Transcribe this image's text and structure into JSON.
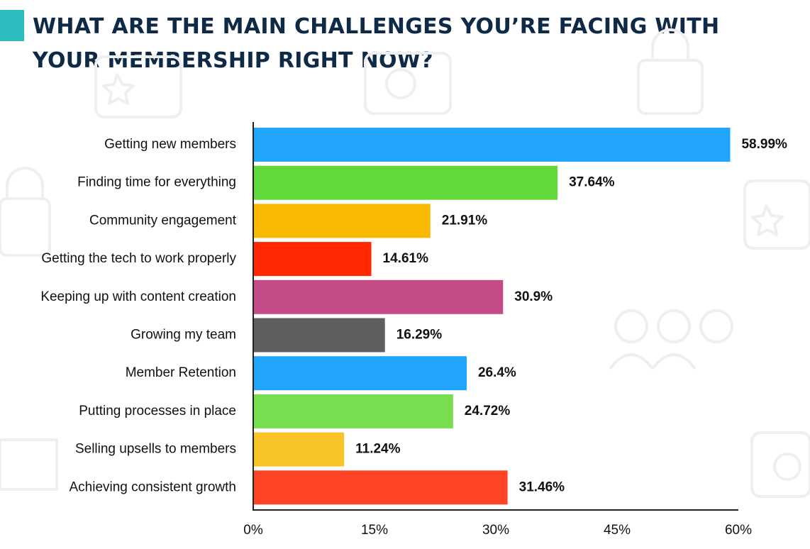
{
  "title": "WHAT ARE THE MAIN CHALLENGES YOU’RE FACING WITH YOUR MEMBERSHIP RIGHT NOW?",
  "colors": {
    "accent": "#2bbdbd",
    "title": "#0e2a47",
    "axis": "#222222"
  },
  "chart_data": {
    "type": "bar",
    "orientation": "horizontal",
    "categories": [
      "Getting new members",
      "Finding time for everything",
      "Community engagement",
      "Getting the tech to work properly",
      "Keeping up with content creation",
      "Growing my team",
      "Member Retention",
      "Putting processes in place",
      "Selling upsells to members",
      "Achieving consistent growth"
    ],
    "values": [
      58.99,
      37.64,
      21.91,
      14.61,
      30.9,
      16.29,
      26.4,
      24.72,
      11.24,
      31.46
    ],
    "value_labels": [
      "58.99%",
      "37.64%",
      "21.91%",
      "14.61%",
      "30.9%",
      "16.29%",
      "26.4%",
      "24.72%",
      "11.24%",
      "31.46%"
    ],
    "bar_colors": [
      "#21a4fc",
      "#62d93a",
      "#f8b900",
      "#ff2800",
      "#c44b86",
      "#5f5f5f",
      "#21a4fc",
      "#77df4f",
      "#f8c325",
      "#ff4527"
    ],
    "xlim": [
      0,
      60
    ],
    "xticks": [
      0,
      15,
      30,
      45,
      60
    ],
    "xtick_labels": [
      "0%",
      "15%",
      "30%",
      "45%",
      "60%"
    ],
    "xlabel": "",
    "ylabel": "",
    "grid": false,
    "legend": "none"
  }
}
